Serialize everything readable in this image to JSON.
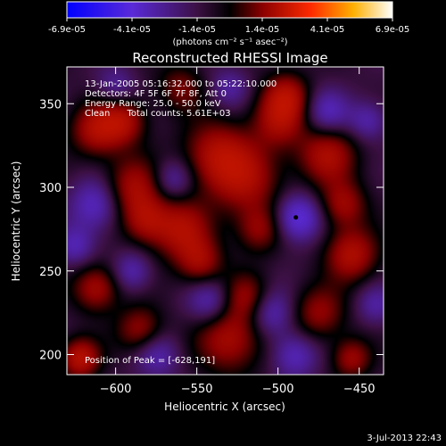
{
  "chart_data": {
    "type": "heatmap",
    "title": "Reconstructed RHESSI Image",
    "xlabel": "Heliocentric X (arcsec)",
    "ylabel": "Heliocentric Y (arcsec)",
    "xlim": [
      -630,
      -435
    ],
    "ylim": [
      188,
      372
    ],
    "xticks": [
      -600,
      -550,
      -500,
      -450
    ],
    "yticks": [
      200,
      250,
      300,
      350
    ],
    "x_tick_labels": [
      "−600",
      "−550",
      "−500",
      "−450"
    ],
    "y_tick_labels": [
      "200",
      "250",
      "300",
      "350"
    ],
    "colorbar": {
      "min": -6.9e-05,
      "max": 6.9e-05,
      "tick_labels": [
        "-6.9e-05",
        "-4.1e-05",
        "-1.4e-05",
        "1.4e-05",
        "4.1e-05",
        "6.9e-05"
      ],
      "unit_label": "(photons cm⁻² s⁻¹ asec⁻²)"
    },
    "info_lines": [
      "13-Jan-2005 05:16:32.000 to 05:22:10.000",
      "Detectors: 4F 5F 6F 7F 8F, Att 0",
      "Energy Range: 25.0 - 50.0 keV",
      "Clean      Total counts: 5.61E+03"
    ],
    "peak_label": "Position of Peak = [-628,191]",
    "peak_position": [
      -628,
      191
    ],
    "marker_position": [
      -489,
      282
    ],
    "blobs": [
      {
        "x": -612,
        "y": 335,
        "w": 16,
        "v": 0.95
      },
      {
        "x": -595,
        "y": 340,
        "w": 14,
        "v": 0.85
      },
      {
        "x": -590,
        "y": 300,
        "w": 18,
        "v": 0.9
      },
      {
        "x": -582,
        "y": 280,
        "w": 14,
        "v": 0.75
      },
      {
        "x": -560,
        "y": 275,
        "w": 18,
        "v": 0.95
      },
      {
        "x": -548,
        "y": 255,
        "w": 14,
        "v": 0.8
      },
      {
        "x": -538,
        "y": 320,
        "w": 20,
        "v": 0.9
      },
      {
        "x": -520,
        "y": 305,
        "w": 22,
        "v": 0.85
      },
      {
        "x": -512,
        "y": 275,
        "w": 14,
        "v": 0.7
      },
      {
        "x": -500,
        "y": 340,
        "w": 16,
        "v": 0.8
      },
      {
        "x": -495,
        "y": 355,
        "w": 14,
        "v": 0.9
      },
      {
        "x": -470,
        "y": 320,
        "w": 18,
        "v": 0.95
      },
      {
        "x": -460,
        "y": 290,
        "w": 14,
        "v": 0.8
      },
      {
        "x": -455,
        "y": 260,
        "w": 16,
        "v": 1.0
      },
      {
        "x": -475,
        "y": 225,
        "w": 16,
        "v": 0.75
      },
      {
        "x": -530,
        "y": 210,
        "w": 20,
        "v": 0.95
      },
      {
        "x": -520,
        "y": 235,
        "w": 14,
        "v": 0.7
      },
      {
        "x": -585,
        "y": 215,
        "w": 14,
        "v": 0.8
      },
      {
        "x": -612,
        "y": 240,
        "w": 14,
        "v": 0.9
      },
      {
        "x": -622,
        "y": 198,
        "w": 12,
        "v": 1.1
      },
      {
        "x": -455,
        "y": 198,
        "w": 12,
        "v": 0.8
      },
      {
        "x": -560,
        "y": 360,
        "w": 14,
        "v": 0.6
      },
      {
        "x": -612,
        "y": 290,
        "w": 16,
        "v": -0.8
      },
      {
        "x": -625,
        "y": 265,
        "w": 12,
        "v": -0.6
      },
      {
        "x": -565,
        "y": 305,
        "w": 12,
        "v": -0.6
      },
      {
        "x": -542,
        "y": 232,
        "w": 14,
        "v": -0.7
      },
      {
        "x": -488,
        "y": 282,
        "w": 14,
        "v": -1.0
      },
      {
        "x": -505,
        "y": 225,
        "w": 14,
        "v": -0.7
      },
      {
        "x": -470,
        "y": 345,
        "w": 14,
        "v": -0.7
      },
      {
        "x": -445,
        "y": 340,
        "w": 12,
        "v": -0.6
      },
      {
        "x": -590,
        "y": 250,
        "w": 12,
        "v": -0.6
      },
      {
        "x": -575,
        "y": 200,
        "w": 14,
        "v": -0.6
      },
      {
        "x": -490,
        "y": 200,
        "w": 14,
        "v": -0.7
      },
      {
        "x": -600,
        "y": 360,
        "w": 12,
        "v": -0.5
      },
      {
        "x": -530,
        "y": 360,
        "w": 12,
        "v": -0.5
      },
      {
        "x": -440,
        "y": 230,
        "w": 12,
        "v": -0.5
      }
    ]
  },
  "footer": {
    "timestamp": "3-Jul-2013 22:43"
  }
}
